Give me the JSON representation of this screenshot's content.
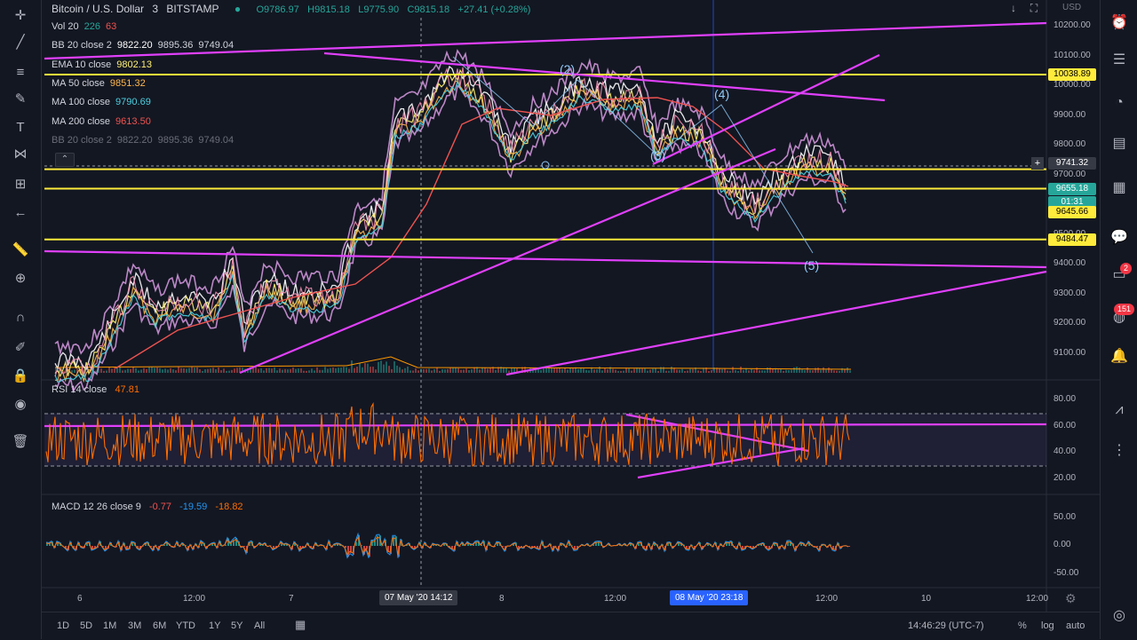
{
  "header": {
    "symbol": "Bitcoin / U.S. Dollar",
    "interval": "3",
    "exchange": "BITSTAMP",
    "open": "O9786.97",
    "high": "H9815.18",
    "low": "L9775.90",
    "close": "C9815.18",
    "change": "+27.41 (+0.28%)"
  },
  "indicators": [
    {
      "name": "Vol 20",
      "values": [
        "226",
        "63"
      ],
      "colors": [
        "#26a69a",
        "#ef5350"
      ]
    },
    {
      "name": "BB 20 close 2",
      "values": [
        "9822.20",
        "9895.36",
        "9749.04"
      ],
      "colors": [
        "#ffffff",
        "#d1d4dc",
        "#d1d4dc"
      ]
    },
    {
      "name": "EMA 10 close",
      "values": [
        "9802.13"
      ],
      "colors": [
        "#fff176"
      ]
    },
    {
      "name": "MA 50 close",
      "values": [
        "9851.32"
      ],
      "colors": [
        "#ffb74d"
      ]
    },
    {
      "name": "MA 100 close",
      "values": [
        "9790.69"
      ],
      "colors": [
        "#4dd0e1"
      ]
    },
    {
      "name": "MA 200 close",
      "values": [
        "9613.50"
      ],
      "colors": [
        "#ef5350"
      ]
    },
    {
      "name": "BB 20 close 2",
      "values": [
        "9822.20",
        "9895.36",
        "9749.04"
      ],
      "colors": [
        "#d1d4dc",
        "#d1d4dc",
        "#d1d4dc"
      ],
      "dim": true
    }
  ],
  "price_axis": {
    "currency": "USD",
    "ticks": [
      "10200.00",
      "10100.00",
      "10000.00",
      "9900.00",
      "9800.00",
      "9700.00",
      "9600.00",
      "9500.00",
      "9400.00",
      "9300.00",
      "9200.00",
      "9100.00"
    ],
    "tags": [
      {
        "label": "10038.89",
        "value": 10038.89,
        "bg": "#ffeb3b",
        "fg": "#000000"
      },
      {
        "label": "9741.32",
        "value": 9741.32,
        "bg": "#363a45",
        "fg": "#ffffff"
      },
      {
        "label": "9655.18",
        "value": 9655.18,
        "bg": "#26a69a",
        "fg": "#ffffff"
      },
      {
        "label": "01:31",
        "value": 9610,
        "bg": "#26a69a",
        "fg": "#ffffff"
      },
      {
        "label": "9645.66",
        "value": 9575,
        "bg": "#ffeb3b",
        "fg": "#000000"
      },
      {
        "label": "9484.47",
        "value": 9484.47,
        "bg": "#ffeb3b",
        "fg": "#000000"
      }
    ]
  },
  "rsi": {
    "label": "RSI 14 close",
    "value": "47.81",
    "ticks": [
      "80.00",
      "60.00",
      "40.00",
      "20.00"
    ]
  },
  "macd": {
    "label": "MACD 12 26 close 9",
    "values": [
      "-0.77",
      "-19.59",
      "-18.82"
    ],
    "colors": [
      "#ef5350",
      "#2196f3",
      "#ff6d00"
    ],
    "ticks": [
      "50.00",
      "0.00",
      "-50.00"
    ]
  },
  "time_axis": {
    "ticks": [
      {
        "label": "6",
        "x": 97
      },
      {
        "label": "12:00",
        "x": 216
      },
      {
        "label": "7",
        "x": 335
      },
      {
        "label": "8",
        "x": 572
      },
      {
        "label": "12:00",
        "x": 690
      },
      {
        "label": "12:00",
        "x": 928
      },
      {
        "label": "10",
        "x": 1047
      },
      {
        "label": "12:00",
        "x": 1165
      }
    ],
    "cursor_label": "07 May '20  14:12",
    "marker_label": "08 May '20  23:18"
  },
  "wave_labels": [
    "(2)",
    "(4)",
    "(3)",
    "(5)"
  ],
  "bottom_bar": {
    "ranges": [
      "1D",
      "5D",
      "1M",
      "3M",
      "6M",
      "YTD",
      "1Y",
      "5Y",
      "All"
    ],
    "time": "14:46:29 (UTC-7)",
    "percent": "%",
    "log": "log",
    "auto": "auto"
  },
  "badges": {
    "ideas": "2",
    "notifications": "151"
  },
  "chart_data": {
    "type": "line",
    "title": "Bitcoin / U.S. Dollar · 3 · BITSTAMP",
    "xlabel": "",
    "ylabel": "",
    "ylim": [
      9050,
      10230
    ],
    "x": [
      "6",
      "12:00",
      "7",
      "07 May '20",
      "8",
      "12:00",
      "08 May '20",
      "12:00"
    ],
    "series": [
      {
        "name": "Price",
        "values": [
          9080,
          9350,
          9320,
          10020,
          9800,
          10010,
          9780,
          9650
        ]
      }
    ],
    "horizontal_levels": [
      10038.89,
      9741.32,
      9655.18,
      9484.47
    ]
  }
}
